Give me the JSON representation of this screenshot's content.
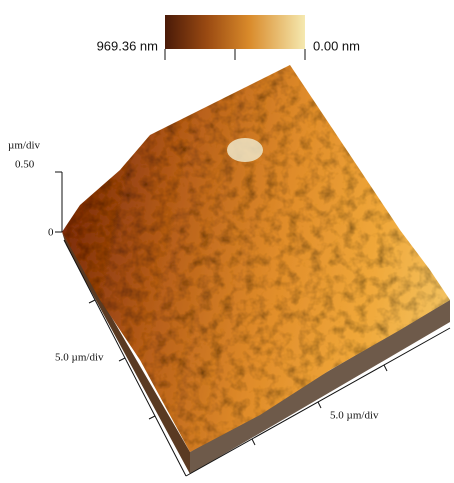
{
  "colorbar": {
    "max_label": "969.36 nm",
    "min_label": "0.00 nm"
  },
  "z_axis": {
    "unit": "µm/div",
    "tick_top": "0.50",
    "tick_bottom": "0"
  },
  "x_axis": {
    "label": "5.0 µm/div"
  },
  "y_axis": {
    "label": "5.0 µm/div"
  }
}
